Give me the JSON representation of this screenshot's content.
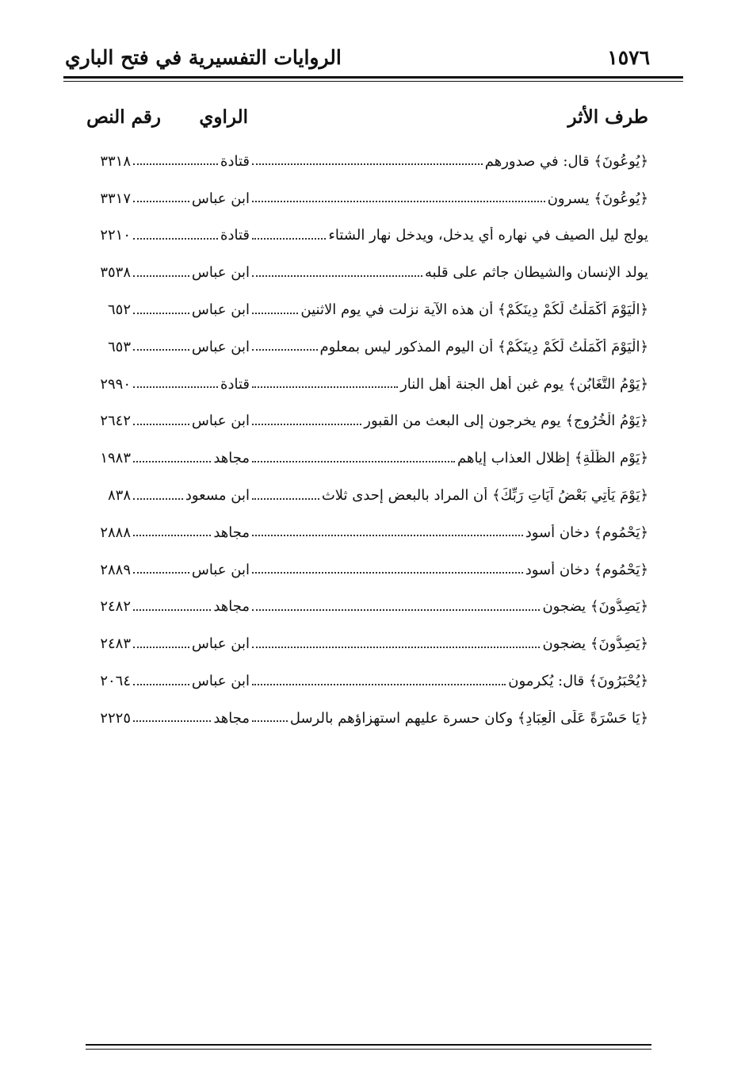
{
  "header": {
    "page_number": "١٥٧٦",
    "title": "الروايات التفسيرية في فتح الباري"
  },
  "table": {
    "headers": [
      "طرف الأثر",
      "الراوي",
      "رقم النص"
    ],
    "rows": [
      [
        "﴿يُوعُونَ﴾ قال: في صدورهم",
        "قتادة",
        "٣٣١٨"
      ],
      [
        "﴿يُوعُونَ﴾ يسرون",
        "ابن عباس",
        "٣٣١٧"
      ],
      [
        "يولج ليل الصيف في نهاره أي يدخل، ويدخل نهار الشتاء",
        "قتادة",
        "٢٢١٠"
      ],
      [
        "يولد الإنسان والشيطان جاثم على قلبه",
        "ابن عباس",
        "٣٥٣٨"
      ],
      [
        "﴿الْيَوْمَ أَكْمَلْتُ لَكُمْ دِينَكُمْ﴾ أن هذه الآية نزلت في يوم الاثنين",
        "ابن عباس",
        "٦٥٢"
      ],
      [
        "﴿الْيَوْمَ أَكْمَلْتُ لَكُمْ دِينَكُمْ﴾ أن اليوم المذكور ليس بمعلوم",
        "ابن عباس",
        "٦٥٣"
      ],
      [
        "﴿يَوْمُ التَّغَابُنِ﴾ يوم غبن أهل الجنة أهل النار",
        "قتادة",
        "٢٩٩٠"
      ],
      [
        "﴿يَوْمُ الْخُرُوجِ﴾ يوم يخرجون إلى البعث من القبور",
        "ابن عباس",
        "٢٦٤٢"
      ],
      [
        "﴿يَوْمِ الظُّلَّةِ﴾ إظلال العذاب إياهم",
        "مجاهد",
        "١٩٨٣"
      ],
      [
        "﴿يَوْمَ يَأْتِي بَعْضُ آيَاتِ رَبِّكَ﴾ أن المراد بالبعض إحدى ثلاث",
        "ابن مسعود",
        "٨٣٨"
      ],
      [
        "﴿يَحْمُومٍ﴾ دخان أسود",
        "مجاهد",
        "٢٨٨٨"
      ],
      [
        "﴿يَحْمُومٍ﴾ دخان أسود",
        "ابن عباس",
        "٢٨٨٩"
      ],
      [
        "﴿يَصِدُّونَ﴾ يضجون",
        "مجاهد",
        "٢٤٨٢"
      ],
      [
        "﴿يَصِدُّونَ﴾ يضجون",
        "ابن عباس",
        "٢٤٨٣"
      ],
      [
        "﴿يُحْبَرُونَ﴾ قال: يُكرمون",
        "ابن عباس",
        "٢٠٦٤"
      ],
      [
        "﴿يَا حَسْرَةً عَلَى الْعِبَادِ﴾ وكان حسرة عليهم استهزاؤهم بالرسل",
        "مجاهد",
        "٢٢٢٥"
      ]
    ]
  }
}
